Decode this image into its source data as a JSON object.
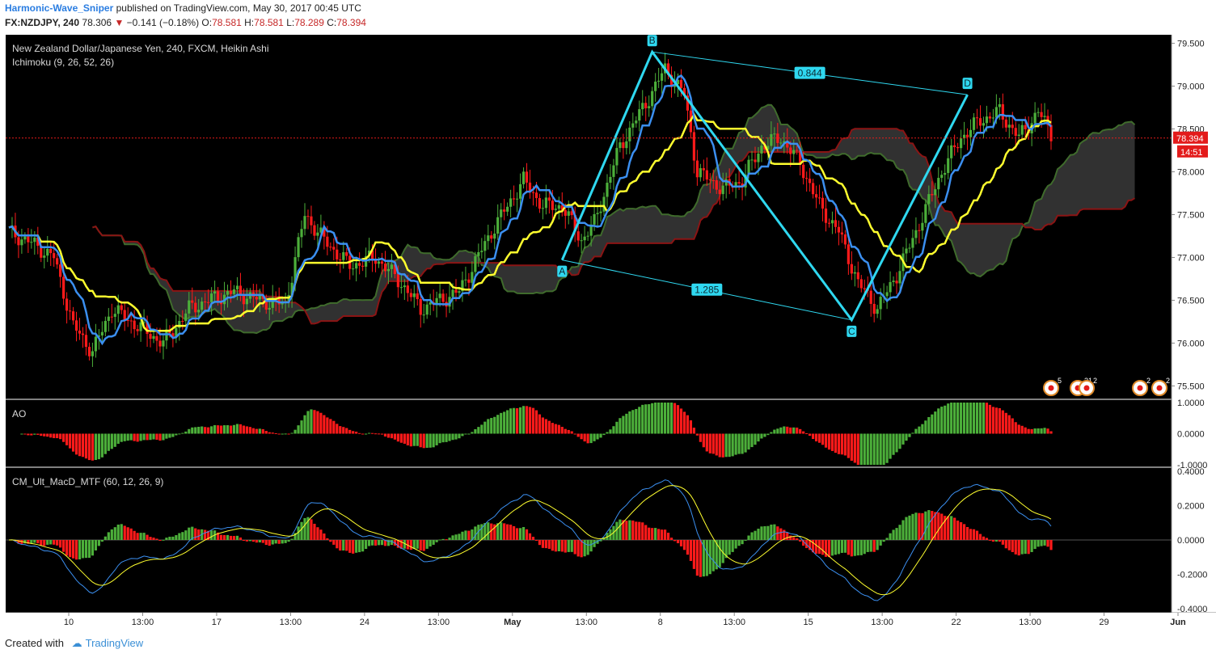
{
  "header": {
    "author": "Harmonic-Wave_Sniper",
    "published": "published on TradingView.com, May 30, 2017 00:45 UTC",
    "symbol": "FX:NZDJPY, 240",
    "last": "78.306",
    "change": "−0.141 (−0.18%)",
    "o_label": "O:",
    "o": "78.581",
    "h_label": "H:",
    "h": "78.581",
    "l_label": "L:",
    "l": "78.289",
    "c_label": "C:",
    "c": "78.394"
  },
  "footer": {
    "created_with": "Created with",
    "brand": "TradingView"
  },
  "colors": {
    "background": "#000000",
    "up": "#4caf3a",
    "down": "#ff1a1a",
    "tenkan": "#3b8ff0",
    "kijun": "#ffff2e",
    "pattern": "#2fd8f0",
    "cloud_fill": "#3a3a3a",
    "senkou_a": "#3f6b2c",
    "senkou_b": "#8b1414",
    "last_price_tag": "#e31b1b"
  },
  "chart_data": {
    "type": "candlestick",
    "title": "New Zealand Dollar/Japanese Yen, 240, FXCM, Heikin Ashi",
    "indicator_label": "Ichimoku (9, 26, 52, 26)",
    "ylim": [
      75.4,
      79.6
    ],
    "grid": false,
    "price_ticks": [
      "79.500",
      "79.000",
      "78.500",
      "78.000",
      "77.500",
      "77.000",
      "76.500",
      "76.000",
      "75.500"
    ],
    "last_price": "78.394",
    "countdown": "14:51",
    "x_ticks": [
      "10",
      "13:00",
      "17",
      "13:00",
      "24",
      "13:00",
      "May",
      "13:00",
      "8",
      "13:00",
      "15",
      "13:00",
      "22",
      "13:00",
      "29",
      "Jun"
    ],
    "pattern": {
      "points": [
        {
          "label": "A",
          "value": 76.97
        },
        {
          "label": "B",
          "value": 79.4
        },
        {
          "label": "C",
          "value": 76.27
        },
        {
          "label": "D",
          "value": 78.9
        }
      ],
      "ratios": [
        "0.844",
        "1.285"
      ]
    },
    "ao": {
      "label": "AO",
      "ylim": [
        -1.0,
        1.0
      ],
      "ticks": [
        "1.0000",
        "0.0000",
        "-1.0000"
      ]
    },
    "macd": {
      "label": "CM_Ult_MacD_MTF (60, 12, 26, 9)",
      "ylim": [
        -0.4,
        0.4
      ],
      "ticks": [
        "0.4000",
        "0.2000",
        "0.0000",
        "-0.2000",
        "-0.4000"
      ]
    },
    "event_markers": [
      "5",
      "21",
      "2",
      "2",
      "2"
    ]
  }
}
